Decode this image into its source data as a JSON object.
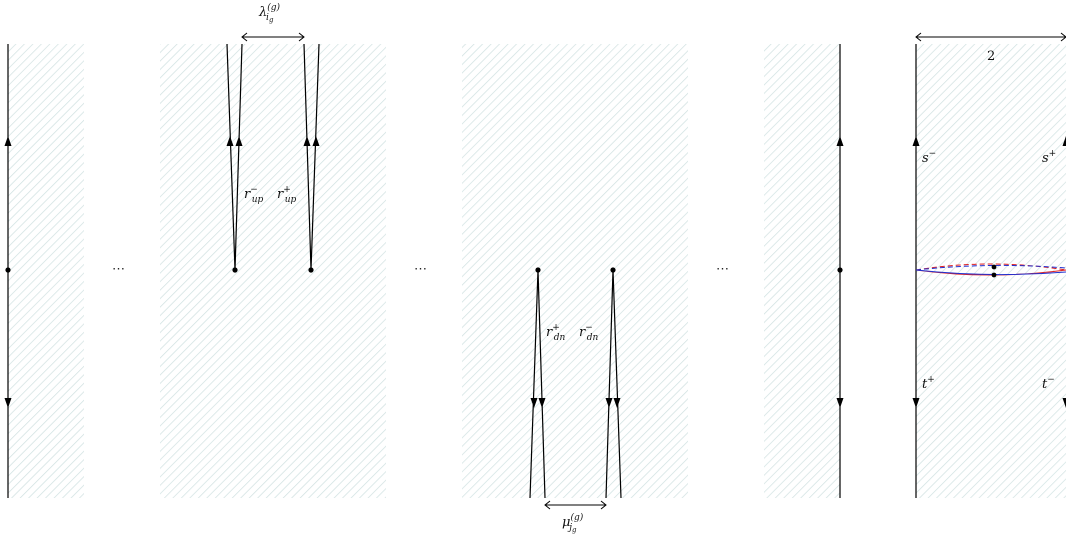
{
  "labels": {
    "lambda_base": "λ",
    "lambda_sub": "i",
    "lambda_subsub": "g",
    "lambda_sup": "(g)",
    "mu_base": "μ",
    "mu_sub": "j",
    "mu_subsub": "g",
    "mu_sup": "(g)",
    "r_up_minus_base": "r",
    "r_up_minus_sup": "−",
    "r_up_minus_sub": "up",
    "r_up_plus_base": "r",
    "r_up_plus_sup": "+",
    "r_up_plus_sub": "up",
    "r_dn_plus_base": "r",
    "r_dn_plus_sup": "+",
    "r_dn_plus_sub": "dn",
    "r_dn_minus_base": "r",
    "r_dn_minus_sup": "−",
    "r_dn_minus_sub": "dn",
    "s_minus_base": "s",
    "s_minus_sup": "−",
    "s_plus_base": "s",
    "s_plus_sup": "+",
    "t_plus_base": "t",
    "t_plus_sup": "+",
    "t_minus_base": "t",
    "t_minus_sup": "−",
    "width_label": "2",
    "ellipsis": "⋯"
  },
  "colors": {
    "hatch": "#cfe0e0",
    "line": "#000000",
    "red": "#e02020",
    "blue": "#2030d0"
  }
}
